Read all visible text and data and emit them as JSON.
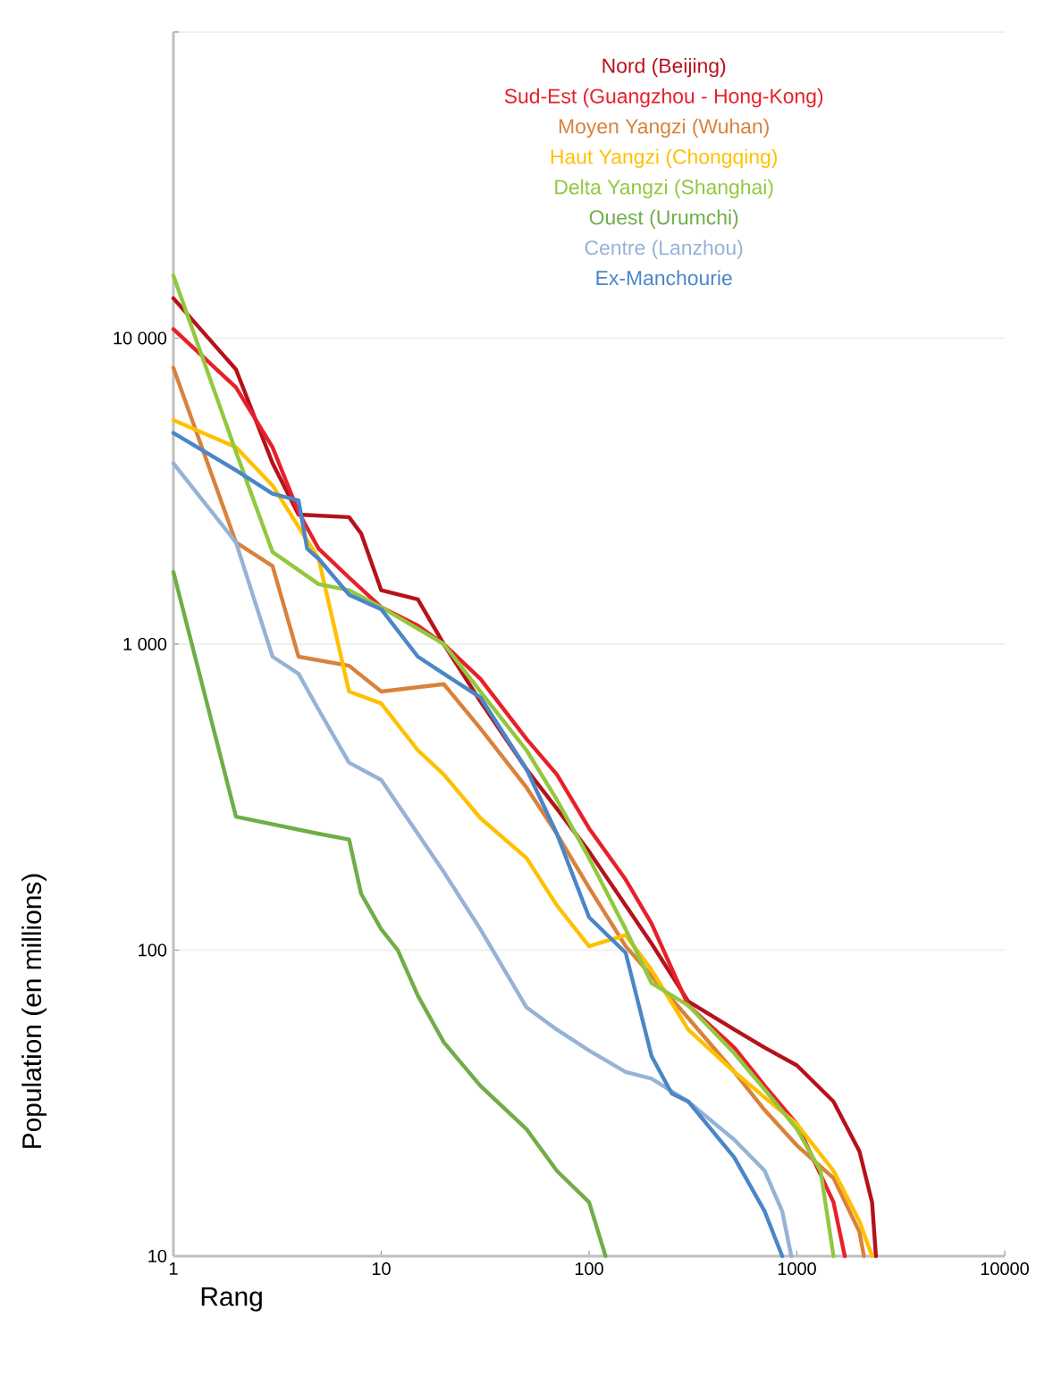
{
  "chart_data": {
    "type": "line",
    "xlabel": "Rang",
    "ylabel": "Population (en millions)",
    "log": "xy",
    "xlim": [
      1,
      10000
    ],
    "xticks": [
      1,
      10,
      100,
      1000,
      10000
    ],
    "ylim": [
      10,
      100000
    ],
    "yticks": [
      {
        "value": 10,
        "label": "10"
      },
      {
        "value": 100,
        "label": "100"
      },
      {
        "value": 1000,
        "label": "1 000"
      },
      {
        "value": 10000,
        "label": "10 000"
      },
      {
        "value": 100000,
        "label": null
      }
    ],
    "grid": "y",
    "legend": "top",
    "marker": "none",
    "line_style": "solid",
    "series": [
      {
        "name": "Nord (Beijing)",
        "color": "#b5121b",
        "x": [
          1,
          2,
          3,
          4,
          7,
          8,
          10,
          15,
          20,
          30,
          50,
          70,
          100,
          150,
          200,
          300,
          500,
          700,
          1000,
          1500,
          2000,
          2300,
          2400
        ],
        "values": [
          13500,
          7900,
          3900,
          2650,
          2600,
          2300,
          1500,
          1400,
          1000,
          650,
          390,
          290,
          210,
          140,
          105,
          68,
          55,
          48,
          42,
          32,
          22,
          15,
          10
        ]
      },
      {
        "name": "Sud-Est (Guangzhou - Hong-Kong)",
        "color": "#e8202a",
        "x": [
          1,
          2,
          3,
          4,
          5,
          7,
          10,
          15,
          20,
          30,
          50,
          70,
          100,
          150,
          200,
          300,
          500,
          700,
          1000,
          1500,
          1700
        ],
        "values": [
          10700,
          6900,
          4400,
          2700,
          2050,
          1650,
          1320,
          1150,
          1000,
          770,
          490,
          375,
          250,
          170,
          122,
          66,
          48,
          36,
          27,
          15,
          10
        ]
      },
      {
        "name": "Moyen Yangzi (Wuhan)",
        "color": "#d9823b",
        "x": [
          1,
          2,
          3,
          4,
          7,
          10,
          20,
          30,
          50,
          70,
          100,
          150,
          300,
          500,
          700,
          1000,
          1500,
          2000,
          2100
        ],
        "values": [
          8000,
          2150,
          1800,
          910,
          850,
          700,
          740,
          530,
          340,
          240,
          160,
          103,
          60,
          40,
          30,
          23,
          18,
          12,
          10
        ]
      },
      {
        "name": "Haut Yangzi (Chongqing)",
        "color": "#ffc000",
        "x": [
          1,
          2,
          3,
          5,
          7,
          10,
          15,
          20,
          30,
          50,
          70,
          100,
          150,
          200,
          300,
          500,
          700,
          1000,
          1500,
          2000,
          2300
        ],
        "values": [
          5400,
          4400,
          3300,
          1900,
          700,
          640,
          450,
          375,
          270,
          200,
          140,
          103,
          112,
          86,
          55,
          40,
          33,
          27,
          19,
          13,
          10
        ]
      },
      {
        "name": "Delta Yangzi (Shanghai)",
        "color": "#92c83e",
        "x": [
          1,
          2,
          3,
          5,
          7,
          10,
          20,
          30,
          50,
          70,
          100,
          150,
          200,
          300,
          500,
          700,
          1000,
          1300,
          1500
        ],
        "values": [
          16000,
          4250,
          2000,
          1570,
          1500,
          1320,
          1000,
          700,
          450,
          310,
          200,
          117,
          78,
          66,
          46,
          35,
          26,
          19,
          10
        ]
      },
      {
        "name": "Ouest (Urumchi)",
        "color": "#70ad47",
        "x": [
          1,
          2,
          5,
          7,
          8,
          10,
          12,
          15,
          20,
          30,
          50,
          70,
          100,
          120
        ],
        "values": [
          1720,
          273,
          240,
          230,
          153,
          117,
          100,
          71,
          50,
          36,
          26,
          19,
          15,
          10
        ]
      },
      {
        "name": "Centre (Lanzhou)",
        "color": "#95b3d7",
        "x": [
          1,
          2,
          3,
          4,
          5,
          7,
          10,
          15,
          20,
          30,
          50,
          70,
          100,
          150,
          200,
          300,
          500,
          700,
          850,
          940
        ],
        "values": [
          3900,
          2150,
          910,
          800,
          610,
          410,
          360,
          240,
          180,
          117,
          65,
          55,
          47,
          40,
          38,
          32,
          24,
          19,
          14,
          10
        ]
      },
      {
        "name": "Ex-Manchourie",
        "color": "#4a86c8",
        "x": [
          1,
          2,
          3,
          4,
          4.4,
          5,
          7,
          10,
          15,
          20,
          30,
          50,
          70,
          100,
          150,
          200,
          250,
          300,
          500,
          700,
          850
        ],
        "values": [
          4900,
          3700,
          3100,
          2950,
          2050,
          1900,
          1450,
          1300,
          910,
          800,
          670,
          390,
          240,
          128,
          98,
          45,
          34,
          32,
          21,
          14,
          10
        ]
      }
    ]
  }
}
